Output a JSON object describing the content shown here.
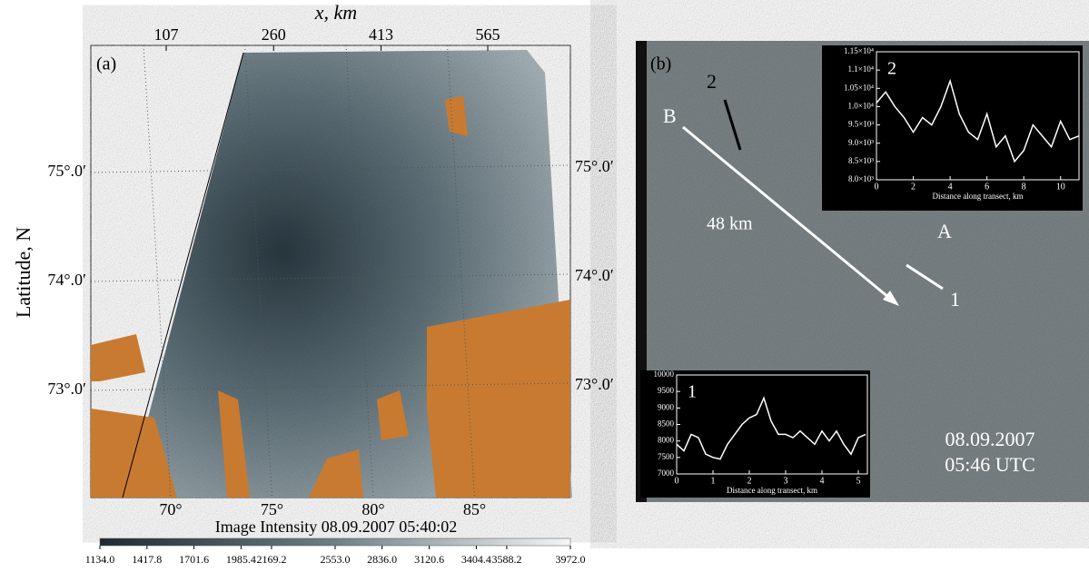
{
  "panel_a": {
    "label": "(a)",
    "x_axis_title": "x, km",
    "y_axis_title": "Latitude, N",
    "top_ticks": [
      107,
      260,
      413,
      565
    ],
    "lat_ticks": [
      {
        "value": 75,
        "label": "75°.0′"
      },
      {
        "value": 74,
        "label": "74°.0′"
      },
      {
        "value": 73,
        "label": "73°.0′"
      }
    ],
    "lon_ticks": [
      {
        "value": 70,
        "label": "70°"
      },
      {
        "value": 75,
        "label": "75°"
      },
      {
        "value": 80,
        "label": "80°"
      },
      {
        "value": 85,
        "label": "85°"
      }
    ],
    "colorbar_title": "Image Intensity 08.09.2007 05:40:02",
    "colorbar_ticks": [
      {
        "value": 1134,
        "label": "1134.0"
      },
      {
        "value": 1417.8,
        "label": "1417.8"
      },
      {
        "value": 1701.6,
        "label": "1701.6"
      },
      {
        "value": 1985.4,
        "label": "1985.4"
      },
      {
        "value": 2169.2,
        "label": "2169.2"
      },
      {
        "value": 2553,
        "label": "2553.0"
      },
      {
        "value": 2836,
        "label": "2836.0"
      },
      {
        "value": 3120.6,
        "label": "3120.6"
      },
      {
        "value": 3404.4,
        "label": "3404.4"
      },
      {
        "value": 3588.2,
        "label": "3588.2"
      },
      {
        "value": 3972,
        "label": "3972.0"
      }
    ]
  },
  "panel_b": {
    "label": "(b)",
    "annotations": [
      "2",
      "B",
      "48 km",
      "A",
      "1"
    ],
    "date": "08.09.2007",
    "time": "05:46 UTC",
    "insets": [
      {
        "type": "line",
        "label": "1",
        "x_axis_title": "Distance along transect, km",
        "xlim": [
          0,
          5.25
        ],
        "ylim": [
          7000,
          10000
        ],
        "xticks": [
          0,
          1,
          2,
          3,
          4,
          5
        ],
        "yticks": [
          7000,
          7500,
          8000,
          8500,
          9000,
          9500,
          10000
        ],
        "x": [
          0,
          0.2,
          0.4,
          0.6,
          0.8,
          1.0,
          1.2,
          1.4,
          1.6,
          1.8,
          2.0,
          2.2,
          2.4,
          2.6,
          2.8,
          3.0,
          3.2,
          3.4,
          3.6,
          3.8,
          4.0,
          4.2,
          4.4,
          4.6,
          4.8,
          5.0,
          5.2
        ],
        "values": [
          7900,
          7700,
          8200,
          8100,
          7600,
          7500,
          7450,
          7900,
          8200,
          8500,
          8700,
          8800,
          9300,
          8600,
          8200,
          8200,
          8100,
          8300,
          8100,
          7900,
          8300,
          8000,
          8300,
          7900,
          7600,
          8100,
          8200
        ]
      },
      {
        "type": "line",
        "label": "2",
        "x_axis_title": "Distance along transect, km",
        "xlim": [
          0,
          11
        ],
        "ylim": [
          8000,
          11500
        ],
        "xticks": [
          0,
          2,
          4,
          6,
          8,
          10
        ],
        "yticks": [
          {
            "value": 8000,
            "label": "8.0×10³"
          },
          {
            "value": 8500,
            "label": "8.5×10³"
          },
          {
            "value": 9000,
            "label": "9.0×10³"
          },
          {
            "value": 9500,
            "label": "9.5×10³"
          },
          {
            "value": 10000,
            "label": "1.0×10⁴"
          },
          {
            "value": 10500,
            "label": "1.05×10⁴"
          },
          {
            "value": 11000,
            "label": "1.1×10⁴"
          },
          {
            "value": 11500,
            "label": "1.15×10⁴"
          }
        ],
        "x": [
          0,
          0.5,
          1,
          1.5,
          2,
          2.5,
          3,
          3.5,
          4,
          4.5,
          5,
          5.5,
          6,
          6.5,
          7,
          7.5,
          8,
          8.5,
          9,
          9.5,
          10,
          10.5,
          11
        ],
        "values": [
          10100,
          10400,
          10000,
          9700,
          9300,
          9700,
          9500,
          10000,
          10700,
          9800,
          9300,
          9100,
          9800,
          8900,
          9200,
          8500,
          8800,
          9500,
          9200,
          8900,
          9600,
          9100,
          9200
        ]
      }
    ]
  }
}
